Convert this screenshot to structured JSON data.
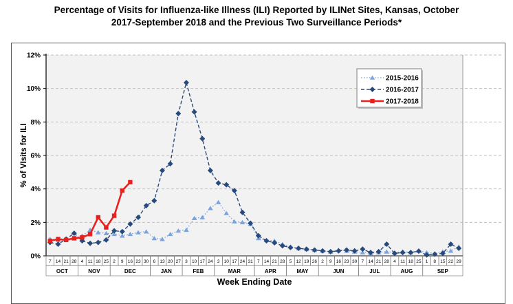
{
  "title": {
    "line1": "Percentage of Visits for Influenza-like Illness (ILI) Reported by ILINet Sites, Kansas, October",
    "line2": "2017-September 2018 and the Previous Two Surveillance Periods*"
  },
  "colors": {
    "plot_background": "#f2f2f2",
    "gridline": "#bfbfbf",
    "axis": "#000000",
    "cell_border": "#7f7f7f",
    "legend_border": "#a6a6a6",
    "series_2015": "#7ba3dc",
    "series_2016": "#27497b",
    "series_2017": "#e8201e"
  },
  "chart_data": {
    "type": "line",
    "title": "Percentage of Visits for Influenza-like Illness (ILI) Reported by ILINet Sites, Kansas, October 2017-September 2018 and the Previous Two Surveillance Periods*",
    "xlabel": "Week Ending  Date",
    "ylabel": "% of VIsits for ILI",
    "ylim": [
      0,
      12
    ],
    "grid": true,
    "legend_position": "top-right-inside",
    "y_ticks": [
      "0%",
      "2%",
      "4%",
      "6%",
      "8%",
      "10%",
      "12%"
    ],
    "months": [
      {
        "label": "OCT",
        "weeks": [
          7,
          14,
          21,
          28
        ]
      },
      {
        "label": "NOV",
        "weeks": [
          4,
          11,
          18,
          25
        ]
      },
      {
        "label": "DEC",
        "weeks": [
          2,
          9,
          16,
          23,
          30
        ]
      },
      {
        "label": "JAN",
        "weeks": [
          6,
          13,
          20,
          27
        ]
      },
      {
        "label": "FEB",
        "weeks": [
          3,
          10,
          17,
          24
        ]
      },
      {
        "label": "MAR",
        "weeks": [
          3,
          10,
          17,
          24,
          31
        ]
      },
      {
        "label": "APR",
        "weeks": [
          7,
          14,
          21,
          28
        ]
      },
      {
        "label": "MAY",
        "weeks": [
          5,
          12,
          19,
          26
        ]
      },
      {
        "label": "JUN",
        "weeks": [
          2,
          9,
          16,
          23,
          30
        ]
      },
      {
        "label": "JUL",
        "weeks": [
          7,
          14,
          21,
          28
        ]
      },
      {
        "label": "AUG",
        "weeks": [
          4,
          11,
          18,
          25
        ]
      },
      {
        "label": "SEP",
        "weeks": [
          1,
          8,
          15,
          22,
          29
        ]
      }
    ],
    "series": [
      {
        "name": "2015-2016",
        "color": "#7ba3dc",
        "style": "dotted",
        "marker": "triangle",
        "values": [
          1.0,
          0.95,
          1.0,
          1.05,
          1.2,
          1.55,
          1.4,
          1.35,
          1.3,
          1.2,
          1.3,
          1.4,
          1.45,
          1.05,
          1.0,
          1.3,
          1.5,
          1.55,
          2.25,
          2.3,
          2.85,
          3.2,
          2.55,
          2.05,
          2.0,
          1.9,
          1.05,
          0.95,
          0.9,
          0.7,
          0.55,
          0.45,
          0.4,
          0.35,
          0.3,
          0.25,
          0.35,
          0.3,
          0.25,
          0.2,
          0.15,
          0.2,
          0.25,
          0.2,
          0.25,
          0.2,
          0.3,
          0.2,
          0.15,
          0.25,
          0.3,
          0.55
        ]
      },
      {
        "name": "2016-2017",
        "color": "#27497b",
        "style": "dashed",
        "marker": "diamond",
        "values": [
          0.8,
          0.7,
          1.0,
          1.35,
          0.9,
          0.75,
          0.8,
          0.95,
          1.5,
          1.45,
          1.9,
          2.3,
          3.0,
          3.3,
          5.1,
          5.5,
          8.5,
          10.35,
          8.6,
          7.0,
          5.1,
          4.35,
          4.25,
          3.9,
          2.6,
          1.95,
          1.2,
          0.9,
          0.78,
          0.6,
          0.5,
          0.45,
          0.4,
          0.35,
          0.3,
          0.25,
          0.3,
          0.35,
          0.3,
          0.4,
          0.2,
          0.25,
          0.7,
          0.15,
          0.2,
          0.2,
          0.28,
          0.05,
          0.1,
          0.15,
          0.7,
          0.45
        ]
      },
      {
        "name": "2017-2018",
        "color": "#e8201e",
        "style": "solid",
        "marker": "square",
        "values": [
          0.9,
          1.0,
          0.95,
          1.05,
          1.1,
          1.3,
          2.3,
          1.7,
          2.4,
          3.9,
          4.4
        ]
      }
    ]
  }
}
